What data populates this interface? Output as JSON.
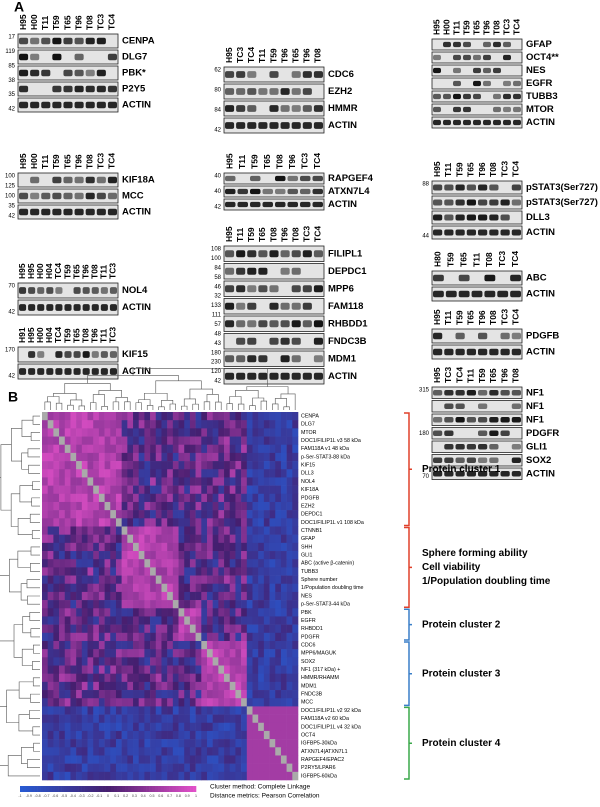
{
  "panel_a": {
    "label": "A",
    "blots": [
      {
        "lanes": [
          "H95",
          "H00",
          "T11",
          "T59",
          "T65",
          "T96",
          "T08",
          "TC3",
          "TC4"
        ],
        "proteins": [
          "CENPA",
          "DLG7",
          "PBK*",
          "P2Y5",
          "ACTIN"
        ],
        "markers": [
          17,
          119,
          85,
          38,
          35,
          42
        ]
      },
      {
        "lanes": [
          "H95",
          "H00",
          "T11",
          "T59",
          "T65",
          "T96",
          "T08",
          "TC3",
          "TC4"
        ],
        "proteins": [
          "KIF18A",
          "MCC",
          "ACTIN"
        ],
        "markers": [
          100,
          125,
          100,
          35,
          42
        ]
      },
      {
        "lanes": [
          "H95",
          "H95",
          "H00",
          "H04",
          "TC4",
          "T59",
          "T65",
          "T96",
          "T08",
          "T11",
          "TC3"
        ],
        "proteins": [
          "NOL4",
          "ACTIN"
        ],
        "markers": [
          70,
          42
        ]
      },
      {
        "lanes": [
          "H91",
          "H95",
          "H00",
          "H04",
          "TC4",
          "T59",
          "T65",
          "T08",
          "T96",
          "T11",
          "TC3"
        ],
        "proteins": [
          "KIF15",
          "ACTIN"
        ],
        "markers": [
          170,
          42
        ]
      },
      {
        "lanes": [
          "H95",
          "TC3",
          "TC4",
          "T11",
          "T59",
          "T96",
          "T65",
          "T96",
          "T08"
        ],
        "proteins": [
          "CDC6",
          "EZH2",
          "HMMR",
          "ACTIN"
        ],
        "markers": [
          62,
          80,
          84,
          42
        ]
      },
      {
        "lanes": [
          "H95",
          "T11",
          "T59",
          "T65",
          "T08",
          "T96",
          "TC3",
          "TC4"
        ],
        "proteins": [
          "RAPGEF4",
          "ATXN7L4",
          "ACTIN"
        ],
        "markers": [
          40,
          40,
          42
        ]
      },
      {
        "lanes": [
          "H95",
          "T11",
          "T59",
          "T65",
          "T08",
          "T96",
          "T08",
          "TC3",
          "TC4"
        ],
        "proteins": [
          "FILIPL1",
          "DEPDC1",
          "MPP6",
          "FAM118",
          "RHBDD1",
          "FNDC3B",
          "MDM1",
          "ACTIN"
        ],
        "markers": [
          108,
          100,
          84,
          58,
          46,
          32,
          133,
          111,
          57,
          48,
          43,
          180,
          230,
          120,
          42
        ]
      },
      {
        "lanes": [
          "H95",
          "H00",
          "T11",
          "T59",
          "T65",
          "T96",
          "T08",
          "TC3",
          "TC4"
        ],
        "proteins": [
          "GFAP",
          "OCT4**",
          "NES",
          "EGFR",
          "TUBB3",
          "MTOR",
          "ACTIN"
        ],
        "markers": []
      },
      {
        "lanes": [
          "H95",
          "T11",
          "T59",
          "T65",
          "T96",
          "T08",
          "TC3",
          "TC4"
        ],
        "proteins": [
          "pSTAT3(Ser727)",
          "pSTAT3(Ser727)",
          "DLL3",
          "ACTIN"
        ],
        "markers": [
          88,
          44
        ]
      },
      {
        "lanes": [
          "H80",
          "T59",
          "T65",
          "T11",
          "T08",
          "TC3",
          "TC4"
        ],
        "proteins": [
          "ABC",
          "ACTIN"
        ],
        "markers": []
      },
      {
        "lanes": [
          "H95",
          "T11",
          "T59",
          "T65",
          "T96",
          "T08",
          "TC3",
          "TC4"
        ],
        "proteins": [
          "PDGFB",
          "ACTIN"
        ],
        "markers": []
      },
      {
        "lanes": [
          "H95",
          "TC3",
          "TC4",
          "T11",
          "T59",
          "T65",
          "T96",
          "T08"
        ],
        "proteins": [
          "NF1",
          "NF1",
          "NF1",
          "PDGFR",
          "GLI1",
          "SOX2",
          "ACTIN"
        ],
        "markers": [
          315,
          180,
          70
        ]
      }
    ]
  },
  "panel_b": {
    "label": "B",
    "rows": [
      "CENPA",
      "DLG7",
      "MTOR",
      "DOC1/FILIP1L v3 58 kDa",
      "FAM118A v1 48 kDa",
      "p-Ser-STAT3-88 kDa",
      "KIF15",
      "DLL3",
      "NOL4",
      "KIF18A",
      "PDGFB",
      "EZH2",
      "DEPDC1",
      "DOC1/FILIP1L v1 108 kDa",
      "CTNNB1",
      "GFAP",
      "SHH",
      "GLI1",
      "ABC (active β-catenin)",
      "TUBB3",
      "Sphere number",
      "1/Population doubling time",
      "NES",
      "p-Ser-STAT3-44 kDa",
      "PBK",
      "EGFR",
      "RHBDD1",
      "PDGFR",
      "CDC6",
      "MPP6/MAGUK",
      "SOX2",
      "NF1 (317 kDa) +",
      "HMMR/RHAMM",
      "MDM1",
      "FNDC3B",
      "MCC",
      "DOC1/FILIP1L v2 92 kDa",
      "FAM118A v2 60 kDa",
      "DOC1/FILIP1L v4 32 kDa",
      "OCT4",
      "IGFBP5-30kDa",
      "ATXN7L4|ATXN7L1",
      "RAPGEF4/EPAC2",
      "P2RY5/LPAR6",
      "IGFBP5-60kDa"
    ],
    "clusters": [
      {
        "lines": [
          "Protein cluster 1"
        ],
        "color": "#e0402a"
      },
      {
        "lines": [
          "Sphere forming ability",
          "Cell viability",
          "1/Population doubling time"
        ],
        "color": "#e0402a"
      },
      {
        "lines": [
          "Protein cluster 2"
        ],
        "color": "#3a7fc8"
      },
      {
        "lines": [
          "Protein cluster 3"
        ],
        "color": "#3a7fc8"
      },
      {
        "lines": [
          "Protein cluster 4"
        ],
        "color": "#3aa84a"
      }
    ],
    "legend": [
      "Cluster method: Complete Linkage",
      "Distance metrics: Pearson Correlation"
    ],
    "colorbar_labels": [
      "-1",
      "-0.9",
      "-0.8",
      "-0.7",
      "-0.6",
      "-0.5",
      "-0.4",
      "-0.3",
      "-0.2",
      "-0.1",
      "0",
      "0.1",
      "0.2",
      "0.3",
      "0.4",
      "0.5",
      "0.6",
      "0.7",
      "0.8",
      "0.9",
      "1"
    ]
  }
}
